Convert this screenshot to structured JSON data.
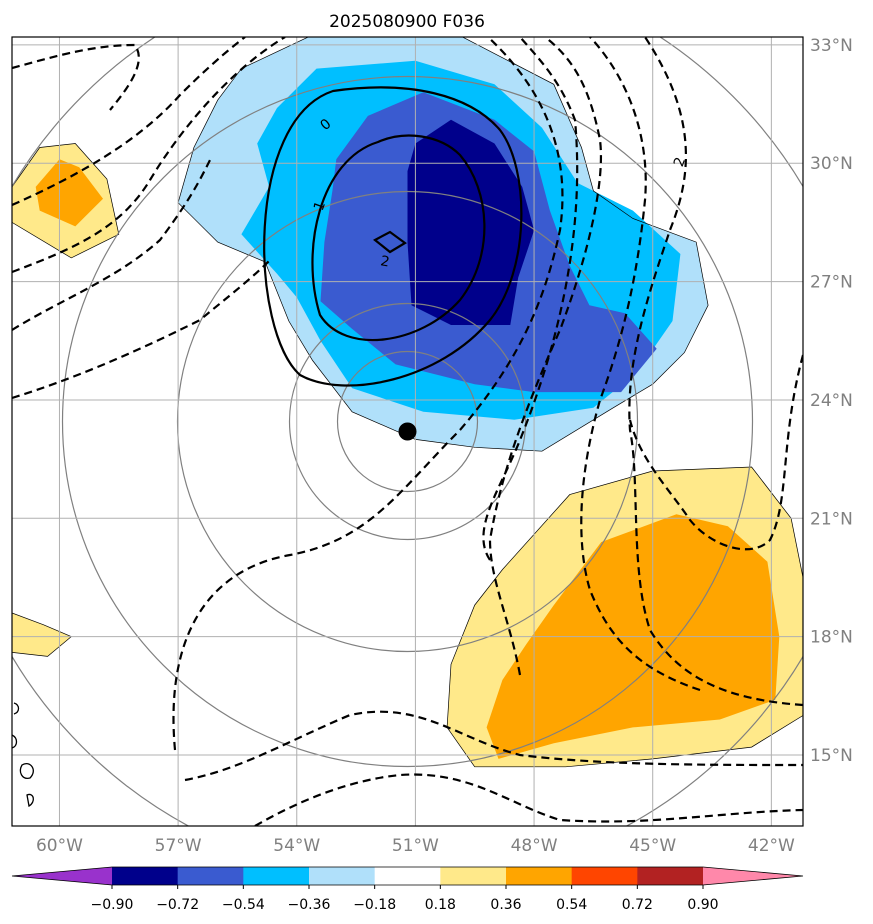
{
  "chart_data": {
    "type": "heatmap",
    "title": "2025080900 F036",
    "projection": "map",
    "grid": true,
    "lon_range": [
      -61.2,
      -41.2
    ],
    "lat_range": [
      13.2,
      33.2
    ],
    "lon_ticks": [
      -60,
      -57,
      -54,
      -51,
      -48,
      -45,
      -42
    ],
    "lon_tick_labels": [
      "60°W",
      "57°W",
      "54°W",
      "51°W",
      "48°W",
      "45°W",
      "42°W"
    ],
    "lat_ticks": [
      15,
      18,
      21,
      24,
      27,
      30,
      33
    ],
    "lat_tick_labels": [
      "15°N",
      "18°N",
      "21°N",
      "24°N",
      "27°N",
      "30°N",
      "33°N"
    ],
    "colorbar": {
      "levels": [
        -0.9,
        -0.72,
        -0.54,
        -0.36,
        -0.18,
        0.18,
        0.36,
        0.54,
        0.72,
        0.9
      ],
      "labels": [
        "−0.90",
        "−0.72",
        "−0.54",
        "−0.36",
        "−0.18",
        "0.18",
        "0.36",
        "0.54",
        "0.72",
        "0.90"
      ],
      "colors": [
        "#9932cc",
        "#00008b",
        "#3a5bd0",
        "#00bfff",
        "#b0e0fa",
        "#ffffff",
        "#ffe98a",
        "#ffa500",
        "#ff4500",
        "#b22222",
        "#ff88aa"
      ],
      "extend": "both"
    },
    "contour_labels": [
      "0",
      "1",
      "2",
      "2"
    ],
    "marker": {
      "lon": -51.2,
      "lat": 23.2
    },
    "filled_regions": [
      {
        "level": -0.18,
        "color": "#b0e0fa",
        "polygon": [
          [
            -55.4,
            32.4
          ],
          [
            -53.5,
            33.3
          ],
          [
            -50.0,
            33.3
          ],
          [
            -47.5,
            32.0
          ],
          [
            -46.8,
            30.4
          ],
          [
            -46.5,
            29.3
          ],
          [
            -45.5,
            28.6
          ],
          [
            -43.9,
            28.0
          ],
          [
            -43.6,
            26.4
          ],
          [
            -44.2,
            25.2
          ],
          [
            -45.0,
            24.4
          ],
          [
            -46.0,
            23.8
          ],
          [
            -47.8,
            22.7
          ],
          [
            -49.5,
            22.8
          ],
          [
            -51.0,
            23.0
          ],
          [
            -52.6,
            23.7
          ],
          [
            -53.6,
            25.0
          ],
          [
            -54.2,
            26.0
          ],
          [
            -54.8,
            27.5
          ],
          [
            -56.0,
            28.0
          ],
          [
            -57.0,
            29.0
          ],
          [
            -56.6,
            30.4
          ],
          [
            -56.0,
            31.6
          ]
        ]
      },
      {
        "level": -0.36,
        "color": "#00bfff",
        "polygon": [
          [
            -54.5,
            31.4
          ],
          [
            -53.5,
            32.4
          ],
          [
            -51.0,
            32.6
          ],
          [
            -49.0,
            32.0
          ],
          [
            -47.8,
            30.9
          ],
          [
            -46.9,
            29.5
          ],
          [
            -45.5,
            28.8
          ],
          [
            -44.3,
            27.7
          ],
          [
            -44.5,
            26.0
          ],
          [
            -45.4,
            24.7
          ],
          [
            -46.5,
            23.8
          ],
          [
            -48.5,
            23.5
          ],
          [
            -50.8,
            23.7
          ],
          [
            -52.6,
            24.3
          ],
          [
            -53.4,
            25.5
          ],
          [
            -54.0,
            26.6
          ],
          [
            -54.5,
            27.2
          ],
          [
            -55.4,
            28.2
          ],
          [
            -54.7,
            29.4
          ],
          [
            -55.0,
            30.5
          ]
        ]
      },
      {
        "level": -0.54,
        "color": "#3a5bd0",
        "polygon": [
          [
            -53.0,
            30.1
          ],
          [
            -52.2,
            31.2
          ],
          [
            -50.8,
            31.8
          ],
          [
            -49.0,
            31.1
          ],
          [
            -48.0,
            30.3
          ],
          [
            -47.6,
            28.8
          ],
          [
            -47.1,
            27.4
          ],
          [
            -46.6,
            26.4
          ],
          [
            -45.7,
            26.2
          ],
          [
            -44.9,
            25.3
          ],
          [
            -45.8,
            24.2
          ],
          [
            -48.0,
            24.2
          ],
          [
            -49.5,
            24.4
          ],
          [
            -51.5,
            24.9
          ],
          [
            -52.6,
            25.8
          ],
          [
            -53.4,
            26.5
          ],
          [
            -53.3,
            28.0
          ],
          [
            -53.1,
            29.3
          ]
        ]
      },
      {
        "level": -0.72,
        "color": "#00008b",
        "polygon": [
          [
            -51.2,
            29.8
          ],
          [
            -51.0,
            30.5
          ],
          [
            -50.1,
            31.1
          ],
          [
            -49.0,
            30.5
          ],
          [
            -48.3,
            29.4
          ],
          [
            -48.0,
            28.3
          ],
          [
            -48.4,
            27.1
          ],
          [
            -48.6,
            25.9
          ],
          [
            -50.1,
            25.9
          ],
          [
            -51.1,
            26.4
          ],
          [
            -51.2,
            28.0
          ]
        ]
      },
      {
        "level": 0.18,
        "color": "#ffe98a",
        "polygon": [
          [
            -61.2,
            29.4
          ],
          [
            -60.5,
            30.4
          ],
          [
            -59.6,
            30.5
          ],
          [
            -58.8,
            29.6
          ],
          [
            -58.5,
            28.2
          ],
          [
            -59.7,
            27.6
          ],
          [
            -61.2,
            28.5
          ]
        ]
      },
      {
        "level": 0.36,
        "color": "#ffa500",
        "polygon": [
          [
            -60.6,
            29.4
          ],
          [
            -60.0,
            30.1
          ],
          [
            -59.5,
            29.9
          ],
          [
            -58.9,
            29.1
          ],
          [
            -59.6,
            28.4
          ],
          [
            -60.5,
            28.8
          ]
        ]
      },
      {
        "level": 0.18,
        "color": "#ffe98a",
        "polygon": [
          [
            -61.2,
            18.6
          ],
          [
            -60.4,
            18.3
          ],
          [
            -59.7,
            18.0
          ],
          [
            -60.3,
            17.5
          ],
          [
            -61.2,
            17.6
          ]
        ]
      },
      {
        "level": 0.18,
        "color": "#ffe98a",
        "polygon": [
          [
            -48.8,
            19.7
          ],
          [
            -47.1,
            21.6
          ],
          [
            -45.0,
            22.2
          ],
          [
            -42.5,
            22.3
          ],
          [
            -41.5,
            21.0
          ],
          [
            -41.2,
            19.5
          ],
          [
            -41.2,
            16.0
          ],
          [
            -42.5,
            15.2
          ],
          [
            -45.0,
            14.9
          ],
          [
            -47.2,
            14.7
          ],
          [
            -49.5,
            14.7
          ],
          [
            -50.2,
            15.7
          ],
          [
            -50.1,
            17.3
          ],
          [
            -49.5,
            18.8
          ]
        ]
      },
      {
        "level": 0.36,
        "color": "#ffa500",
        "polygon": [
          [
            -47.5,
            18.8
          ],
          [
            -46.3,
            20.4
          ],
          [
            -44.4,
            21.1
          ],
          [
            -43.1,
            20.8
          ],
          [
            -42.1,
            19.9
          ],
          [
            -41.8,
            18.0
          ],
          [
            -41.9,
            16.4
          ],
          [
            -43.3,
            15.9
          ],
          [
            -45.5,
            15.7
          ],
          [
            -47.5,
            15.3
          ],
          [
            -48.9,
            14.9
          ],
          [
            -49.2,
            15.7
          ],
          [
            -48.8,
            16.9
          ],
          [
            -48.2,
            17.8
          ]
        ]
      }
    ]
  }
}
